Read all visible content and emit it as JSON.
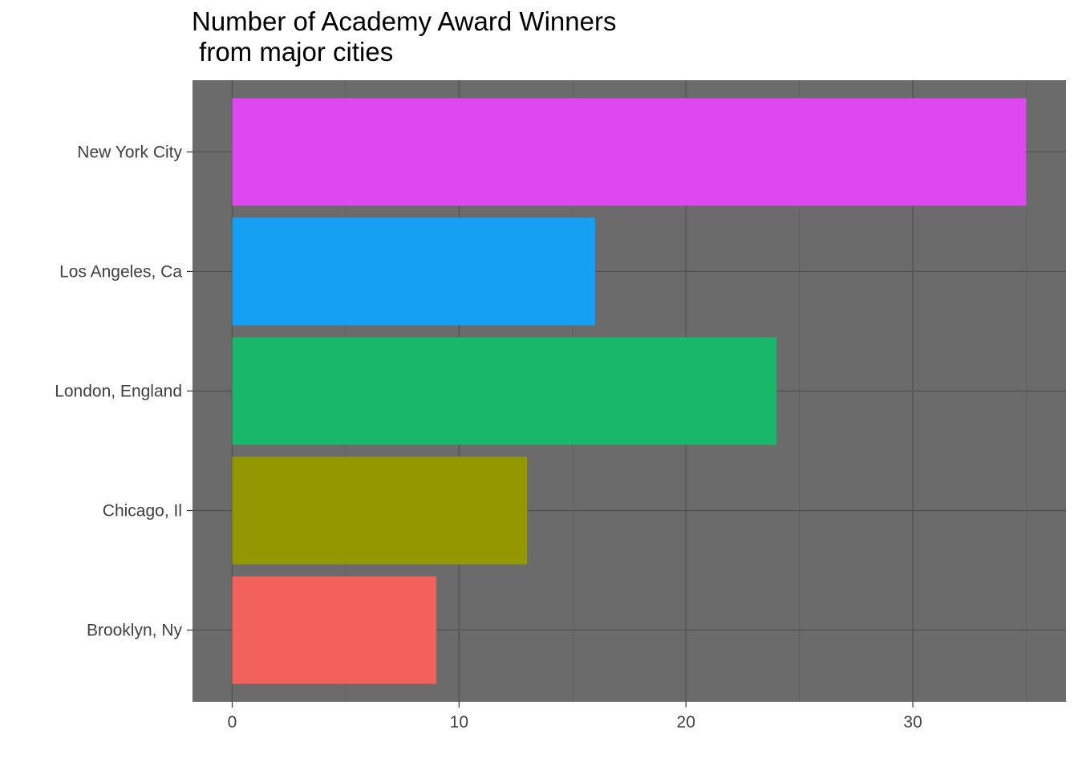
{
  "chart_data": {
    "type": "bar",
    "orientation": "horizontal",
    "title_lines": [
      "Number of Academy Award Winners",
      " from major cities"
    ],
    "xlabel": "",
    "ylabel": "",
    "categories": [
      "Brooklyn, Ny",
      "Chicago, Il",
      "London, England",
      "Los Angeles, Ca",
      "New York City"
    ],
    "values": [
      9,
      13,
      24,
      16,
      35
    ],
    "colors": [
      "#F2615B",
      "#949800",
      "#19B76A",
      "#16A0F3",
      "#DD48F0"
    ],
    "xlim": [
      -1.75,
      36.75
    ],
    "x_ticks": [
      "0",
      "10",
      "20",
      "30"
    ],
    "grid": true,
    "legend": "none",
    "panel_background": "#6B6B6B",
    "grid_major_color": "#555555",
    "grid_minor_color": "#626262"
  }
}
